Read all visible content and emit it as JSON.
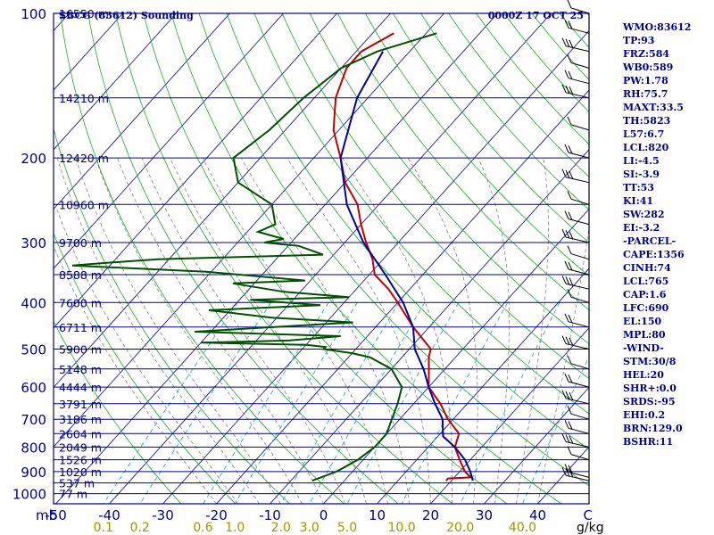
{
  "chart_data": {
    "type": "skew-t",
    "title_left": "SBCG (83612) Sounding",
    "title_right": "0000Z 17 OCT 25",
    "xlabel": "C",
    "mixing_unit": "g/kg",
    "pressure_unit": "mb",
    "pressure_ticks": [
      "100",
      "200",
      "300",
      "400",
      "500",
      "600",
      "700",
      "800",
      "900",
      "1000"
    ],
    "temperature_ticks": [
      "-50",
      "-40",
      "-30",
      "-20",
      "-10",
      "0",
      "10",
      "20",
      "30",
      "40"
    ],
    "mixing_ratio_labels": [
      "0.1",
      "0.2",
      "0.6",
      "1.0",
      "2.0",
      "3.0",
      "5.0",
      "10.0",
      "20.0",
      "40.0"
    ],
    "height_labels": [
      {
        "p": 100,
        "label": "16550 m"
      },
      {
        "p": 150,
        "label": "14210 m"
      },
      {
        "p": 200,
        "label": "12420 m"
      },
      {
        "p": 250,
        "label": "10960 m"
      },
      {
        "p": 300,
        "label": "9700 m"
      },
      {
        "p": 350,
        "label": "8588 m"
      },
      {
        "p": 400,
        "label": "7600 m"
      },
      {
        "p": 450,
        "label": "6711 m"
      },
      {
        "p": 500,
        "label": "5900 m"
      },
      {
        "p": 550,
        "label": "5148 m"
      },
      {
        "p": 600,
        "label": "4444 m"
      },
      {
        "p": 650,
        "label": "3791 m"
      },
      {
        "p": 700,
        "label": "3186 m"
      },
      {
        "p": 750,
        "label": "2604 m"
      },
      {
        "p": 800,
        "label": "2049 m"
      },
      {
        "p": 850,
        "label": "1526 m"
      },
      {
        "p": 900,
        "label": "1020 m"
      },
      {
        "p": 950,
        "label": "537 m"
      },
      {
        "p": 1000,
        "label": "77 m"
      }
    ],
    "series": [
      {
        "name": "temperature",
        "color": "#c00000",
        "points": [
          [
            110,
            -66
          ],
          [
            120,
            -69
          ],
          [
            130,
            -69
          ],
          [
            150,
            -66
          ],
          [
            175,
            -61
          ],
          [
            200,
            -55
          ],
          [
            225,
            -50
          ],
          [
            250,
            -44
          ],
          [
            275,
            -40
          ],
          [
            300,
            -36
          ],
          [
            325,
            -32
          ],
          [
            350,
            -29
          ],
          [
            375,
            -24
          ],
          [
            400,
            -20
          ],
          [
            450,
            -13
          ],
          [
            500,
            -6
          ],
          [
            520,
            -5
          ],
          [
            550,
            -3
          ],
          [
            600,
            0
          ],
          [
            650,
            5
          ],
          [
            700,
            9
          ],
          [
            750,
            13.5
          ],
          [
            800,
            15
          ],
          [
            850,
            18
          ],
          [
            900,
            21
          ],
          [
            925,
            23
          ],
          [
            930,
            19
          ],
          [
            940,
            19
          ]
        ]
      },
      {
        "name": "dewpoint",
        "color": "#005000",
        "points": [
          [
            110,
            -58
          ],
          [
            120,
            -66
          ],
          [
            130,
            -70
          ],
          [
            150,
            -72
          ],
          [
            175,
            -73
          ],
          [
            200,
            -75
          ],
          [
            225,
            -70
          ],
          [
            250,
            -60
          ],
          [
            275,
            -56
          ],
          [
            285,
            -58
          ],
          [
            295,
            -52
          ],
          [
            300,
            -55
          ],
          [
            305,
            -48
          ],
          [
            318,
            -42
          ],
          [
            325,
            -72
          ],
          [
            330,
            -80
          ],
          [
            335,
            -87
          ],
          [
            345,
            -61
          ],
          [
            360,
            -41
          ],
          [
            365,
            -54
          ],
          [
            380,
            -43
          ],
          [
            390,
            -30
          ],
          [
            395,
            -48
          ],
          [
            405,
            -34
          ],
          [
            415,
            -54
          ],
          [
            430,
            -41
          ],
          [
            440,
            -25
          ],
          [
            460,
            -53
          ],
          [
            470,
            -25
          ],
          [
            480,
            -34
          ],
          [
            485,
            -50
          ],
          [
            490,
            -30
          ],
          [
            495,
            -26
          ],
          [
            500,
            -26
          ],
          [
            510,
            -20
          ],
          [
            520,
            -16
          ],
          [
            550,
            -10
          ],
          [
            600,
            -5
          ],
          [
            650,
            -3
          ],
          [
            700,
            -1.5
          ],
          [
            750,
            0
          ],
          [
            780,
            0
          ],
          [
            800,
            0
          ],
          [
            850,
            -1
          ],
          [
            900,
            -3
          ],
          [
            940,
            -6
          ]
        ]
      },
      {
        "name": "parcel",
        "color": "#0000a0",
        "points": [
          [
            120,
            -65
          ],
          [
            150,
            -62
          ],
          [
            200,
            -55
          ],
          [
            250,
            -46
          ],
          [
            300,
            -36.5
          ],
          [
            350,
            -27
          ],
          [
            400,
            -19
          ],
          [
            450,
            -13
          ],
          [
            500,
            -9
          ],
          [
            550,
            -4
          ],
          [
            600,
            0
          ],
          [
            650,
            4
          ],
          [
            700,
            8
          ],
          [
            740,
            10
          ],
          [
            760,
            11
          ],
          [
            800,
            15
          ],
          [
            850,
            19
          ],
          [
            900,
            22
          ],
          [
            940,
            24
          ]
        ]
      }
    ],
    "wind_barbs_p": [
      100,
      110,
      120,
      130,
      140,
      150,
      175,
      200,
      225,
      250,
      275,
      300,
      325,
      350,
      375,
      400,
      450,
      500,
      550,
      600,
      650,
      700,
      750,
      800,
      850,
      925,
      940
    ]
  },
  "params": [
    "WMO:83612",
    "TP:93",
    "FRZ:584",
    "WB0:589",
    "PW:1.78",
    "RH:75.7",
    "MAXT:33.5",
    "TH:5823",
    "L57:6.7",
    "LCL:820",
    "LI:-4.5",
    "SI:-3.9",
    "TT:53",
    "KI:41",
    "SW:282",
    "EI:-3.2",
    "-PARCEL-",
    "CAPE:1356",
    "CINH:74",
    "LCL:765",
    "CAP:1.6",
    "LFC:690",
    "EL:150",
    "MPL:80",
    "-WIND-",
    "STM:30/8",
    "HEL:20",
    "SHR+:0.0",
    "SRDS:-95",
    "EHI:0.2",
    "BRN:129.0",
    "BSHR:11"
  ],
  "colors": {
    "isobar": "#00008b",
    "isotherm": "#0000a0",
    "dry_adiabat": "#22aa22",
    "moist_adiabat": "#777777",
    "mixing_ratio": "#33aacc",
    "frame": "#00008b"
  }
}
